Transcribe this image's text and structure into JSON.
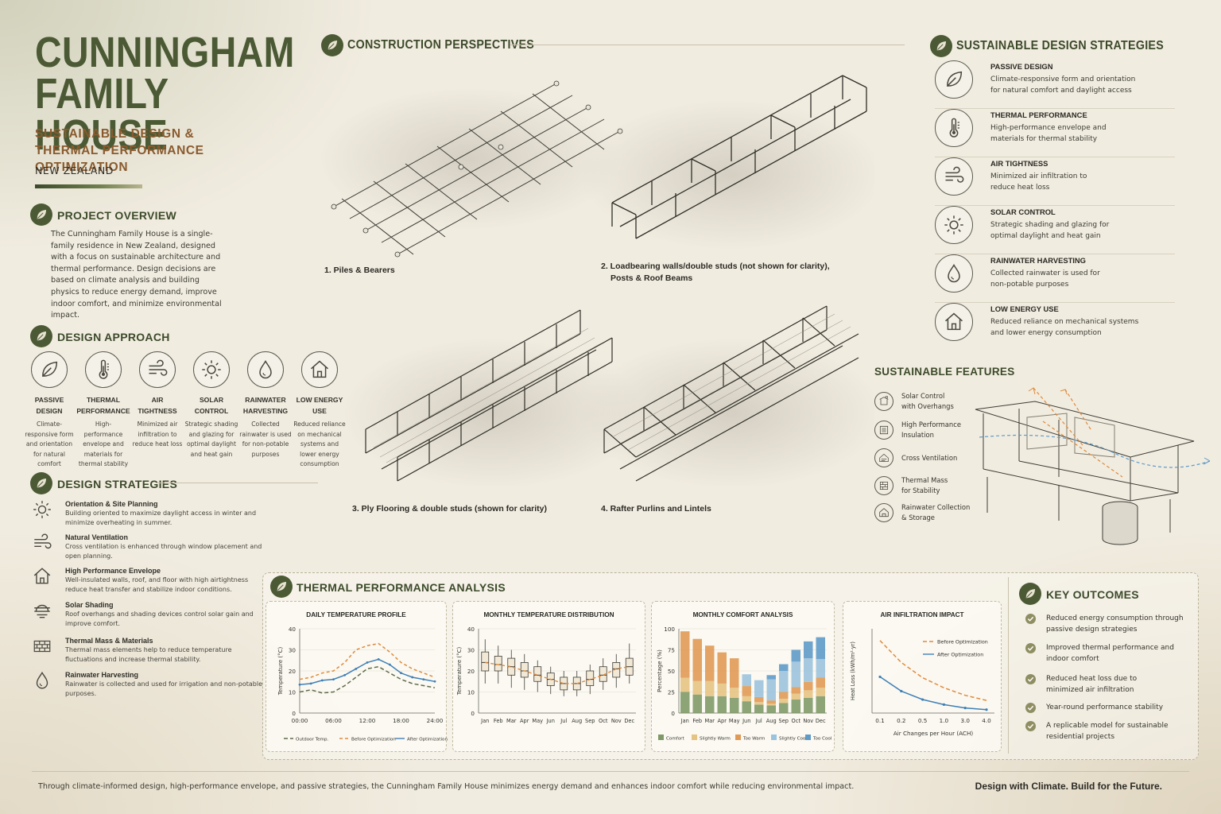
{
  "header": {
    "title_line1": "CUNNINGHAM",
    "title_line2": "FAMILY HOUSE",
    "subtitle_line1": "SUSTAINABLE DESIGN &",
    "subtitle_line2": "THERMAL PERFORMANCE OPTIMIZATION",
    "country": "NEW ZEALAND"
  },
  "overview": {
    "title": "PROJECT OVERVIEW",
    "text": "The Cunningham Family House is a single-family residence in New Zealand, designed with a focus on sustainable architecture and thermal performance. Design decisions are based on climate analysis and building physics to reduce energy demand, improve indoor comfort, and minimize environmental impact."
  },
  "approach": {
    "title": "DESIGN APPROACH",
    "items": [
      {
        "icon": "leaf-icon",
        "name1": "PASSIVE",
        "name2": "DESIGN",
        "desc": "Climate-responsive form and orientation for natural comfort"
      },
      {
        "icon": "thermometer-icon",
        "name1": "THERMAL",
        "name2": "PERFORMANCE",
        "desc": "High-performance envelope and materials for thermal stability"
      },
      {
        "icon": "wind-icon",
        "name1": "AIR",
        "name2": "TIGHTNESS",
        "desc": "Minimized air infiltration to reduce heat loss"
      },
      {
        "icon": "sun-icon",
        "name1": "SOLAR",
        "name2": "CONTROL",
        "desc": "Strategic shading and glazing for optimal daylight and heat gain"
      },
      {
        "icon": "water-drop-icon",
        "name1": "RAINWATER",
        "name2": "HARVESTING",
        "desc": "Collected rainwater is used for non-potable purposes"
      },
      {
        "icon": "house-icon",
        "name1": "LOW ENERGY",
        "name2": "USE",
        "desc": "Reduced reliance on mechanical systems and lower energy consumption"
      }
    ]
  },
  "strategies": {
    "title": "DESIGN STRATEGIES",
    "items": [
      {
        "icon": "sun-icon",
        "title": "Orientation & Site Planning",
        "desc": "Building oriented to maximize daylight access in winter and minimize overheating in summer."
      },
      {
        "icon": "wind-icon",
        "title": "Natural Ventilation",
        "desc": "Cross ventilation is enhanced through window placement and open planning."
      },
      {
        "icon": "house-icon",
        "title": "High Performance Envelope",
        "desc": "Well-insulated walls, roof, and floor with high airtightness reduce heat transfer and stabilize indoor conditions."
      },
      {
        "icon": "shade-icon",
        "title": "Solar Shading",
        "desc": "Roof overhangs and shading devices control solar gain and improve comfort."
      },
      {
        "icon": "brick-icon",
        "title": "Thermal Mass & Materials",
        "desc": "Thermal mass elements help to reduce temperature fluctuations and increase thermal stability."
      },
      {
        "icon": "water-drop-icon",
        "title": "Rainwater Harvesting",
        "desc": "Rainwater is collected and used for irrigation and non-potable purposes."
      }
    ]
  },
  "construction": {
    "title": "CONSTRUCTION PERSPECTIVES",
    "captions": [
      "1.  Piles & Bearers",
      "2.  Loadbearing walls/double studs (not shown for clarity),",
      "Posts & Roof Beams",
      "3.  Ply Flooring & double studs (shown for clarity)",
      "4.  Rafter Purlins and Lintels"
    ]
  },
  "sds": {
    "title": "SUSTAINABLE DESIGN STRATEGIES",
    "items": [
      {
        "icon": "leaf-icon",
        "title": "PASSIVE DESIGN",
        "l1": "Climate-responsive form and orientation",
        "l2": "for natural comfort and daylight access"
      },
      {
        "icon": "thermometer-icon",
        "title": "THERMAL PERFORMANCE",
        "l1": "High-performance envelope and",
        "l2": "materials for thermal stability"
      },
      {
        "icon": "wind-icon",
        "title": "AIR TIGHTNESS",
        "l1": "Minimized air infiltration to",
        "l2": "reduce heat loss"
      },
      {
        "icon": "sun-icon",
        "title": "SOLAR CONTROL",
        "l1": "Strategic shading and glazing for",
        "l2": "optimal daylight and heat gain"
      },
      {
        "icon": "water-drop-icon",
        "title": "RAINWATER HARVESTING",
        "l1": "Collected rainwater is used for",
        "l2": "non-potable purposes"
      },
      {
        "icon": "house-icon",
        "title": "LOW ENERGY USE",
        "l1": "Reduced reliance on mechanical systems",
        "l2": "and lower energy consumption"
      }
    ]
  },
  "features": {
    "title": "SUSTAINABLE FEATURES",
    "items": [
      {
        "icon": "overhang-icon",
        "l1": "Solar Control",
        "l2": "with Overhangs"
      },
      {
        "icon": "insulation-icon",
        "l1": "High Performance",
        "l2": "Insulation"
      },
      {
        "icon": "ventilation-icon",
        "l1": "Cross Ventilation",
        "l2": ""
      },
      {
        "icon": "thermal-mass-icon",
        "l1": "Thermal Mass",
        "l2": "for Stability"
      },
      {
        "icon": "rain-tank-icon",
        "l1": "Rainwater Collection",
        "l2": "& Storage"
      }
    ]
  },
  "thermal": {
    "title": "THERMAL PERFORMANCE ANALYSIS"
  },
  "chart_data": [
    {
      "type": "line",
      "title": "DAILY TEMPERATURE PROFILE",
      "ylabel": "Temperature (°C)",
      "xlabel": "",
      "x_ticks": [
        "00:00",
        "06:00",
        "12:00",
        "18:00",
        "24:00"
      ],
      "x": [
        0,
        2,
        4,
        6,
        8,
        10,
        12,
        14,
        16,
        18,
        20,
        22,
        24
      ],
      "ylim": [
        0,
        40
      ],
      "y_ticks": [
        0,
        10,
        20,
        30,
        40
      ],
      "series": [
        {
          "name": "Outdoor Temp.",
          "color": "#5f6b4a",
          "dash": "5,3",
          "values": [
            10,
            11,
            9.5,
            10,
            13,
            17,
            21,
            22,
            19,
            16,
            14,
            13,
            12
          ]
        },
        {
          "name": "Before Optimization",
          "color": "#e08a3a",
          "dash": "4,3",
          "values": [
            16,
            17,
            19,
            20,
            24,
            30,
            32,
            33,
            29,
            24,
            21,
            19,
            17
          ]
        },
        {
          "name": "After Optimization",
          "color": "#3f7fb6",
          "dash": "",
          "values": [
            13.5,
            14,
            15.5,
            16,
            18,
            21,
            24,
            25.5,
            23,
            19,
            17,
            16,
            15
          ]
        }
      ]
    },
    {
      "type": "box",
      "title": "MONTHLY TEMPERATURE DISTRIBUTION",
      "ylabel": "Temperature (°C)",
      "ylim": [
        0,
        40
      ],
      "y_ticks": [
        0,
        10,
        20,
        30,
        40
      ],
      "categories": [
        "Jan",
        "Feb",
        "Mar",
        "Apr",
        "May",
        "Jun",
        "Jul",
        "Aug",
        "Sep",
        "Oct",
        "Nov",
        "Dec"
      ],
      "boxes": [
        {
          "min": 14,
          "q1": 20,
          "median": 24,
          "q3": 29,
          "max": 35
        },
        {
          "min": 14,
          "q1": 20,
          "median": 23,
          "q3": 27,
          "max": 32
        },
        {
          "min": 12,
          "q1": 18,
          "median": 22,
          "q3": 26,
          "max": 30
        },
        {
          "min": 11,
          "q1": 17,
          "median": 20,
          "q3": 24,
          "max": 28
        },
        {
          "min": 10,
          "q1": 15,
          "median": 18,
          "q3": 22,
          "max": 25
        },
        {
          "min": 9,
          "q1": 13,
          "median": 16,
          "q3": 19,
          "max": 22
        },
        {
          "min": 8,
          "q1": 11,
          "median": 14,
          "q3": 17,
          "max": 20
        },
        {
          "min": 8,
          "q1": 11,
          "median": 14,
          "q3": 17,
          "max": 20
        },
        {
          "min": 9,
          "q1": 13,
          "median": 16,
          "q3": 20,
          "max": 23
        },
        {
          "min": 11,
          "q1": 15,
          "median": 18,
          "q3": 22,
          "max": 26
        },
        {
          "min": 12,
          "q1": 17,
          "median": 21,
          "q3": 24,
          "max": 28
        },
        {
          "min": 14,
          "q1": 18,
          "median": 22,
          "q3": 26,
          "max": 33
        }
      ],
      "trend_color": "#e08a3a"
    },
    {
      "type": "bar",
      "title": "MONTHLY COMFORT ANALYSIS",
      "ylabel": "Percentage (%)",
      "ylim": [
        0,
        100
      ],
      "y_ticks": [
        0,
        25,
        50,
        75,
        100
      ],
      "categories": [
        "Jan",
        "Feb",
        "Mar",
        "Apr",
        "May",
        "Jun",
        "Jul",
        "Aug",
        "Sep",
        "Oct",
        "Nov",
        "Dec"
      ],
      "stacked": true,
      "series": [
        {
          "name": "Comfort",
          "color": "#7f9a68",
          "values": [
            25,
            22,
            20,
            20,
            18,
            14,
            10,
            9,
            12,
            16,
            18,
            20
          ]
        },
        {
          "name": "Slightly Warm",
          "color": "#e5c383",
          "values": [
            17,
            16,
            18,
            15,
            12,
            6,
            3,
            2,
            5,
            7,
            9,
            10
          ]
        },
        {
          "name": "Too Warm",
          "color": "#e09a55",
          "values": [
            55,
            50,
            42,
            37,
            35,
            12,
            6,
            4,
            8,
            8,
            10,
            12
          ]
        },
        {
          "name": "Slightly Cool",
          "color": "#9cc3de",
          "values": [
            0,
            0,
            0,
            0,
            0,
            14,
            20,
            25,
            25,
            30,
            28,
            22
          ]
        },
        {
          "name": "Too Cool",
          "color": "#5f9bc9",
          "values": [
            0,
            0,
            0,
            0,
            0,
            0,
            0,
            5,
            8,
            14,
            20,
            26
          ]
        }
      ]
    },
    {
      "type": "line",
      "title": "AIR INFILTRATION IMPACT",
      "ylabel": "Heat Loss (kWh/m²·yr)",
      "xlabel": "Air Changes per Hour (ACH)",
      "x_ticks": [
        "0.1",
        "0.2",
        "0.5",
        "1.0",
        "3.0",
        "4.0"
      ],
      "x": [
        0,
        1,
        2,
        3,
        4,
        5
      ],
      "ylim": [
        0,
        100
      ],
      "series": [
        {
          "name": "Before Optimization",
          "color": "#e08a3a",
          "dash": "5,3",
          "values": [
            86,
            60,
            42,
            30,
            21,
            15
          ]
        },
        {
          "name": "After Optimization",
          "color": "#3f7fb6",
          "dash": "",
          "values": [
            43,
            26,
            16,
            10,
            6,
            4
          ]
        }
      ]
    }
  ],
  "outcomes": {
    "title": "KEY OUTCOMES",
    "items": [
      {
        "l1": "Reduced energy consumption through",
        "l2": "passive design strategies"
      },
      {
        "l1": "Improved thermal performance and",
        "l2": "indoor comfort"
      },
      {
        "l1": "Reduced heat loss due to",
        "l2": "minimized air infiltration"
      },
      {
        "l1": "Year-round performance stability",
        "l2": ""
      },
      {
        "l1": "A replicable model for sustainable",
        "l2": "residential projects"
      }
    ]
  },
  "footer": {
    "text": "Through climate-informed design, high-performance envelope, and passive strategies, the Cunningham Family House minimizes energy demand and enhances indoor comfort while reducing environmental impact.",
    "tagline": "Design with Climate. Build for the Future."
  },
  "colors": {
    "brand_green": "#4b5a34",
    "accent_brown": "#8a5a2e"
  }
}
